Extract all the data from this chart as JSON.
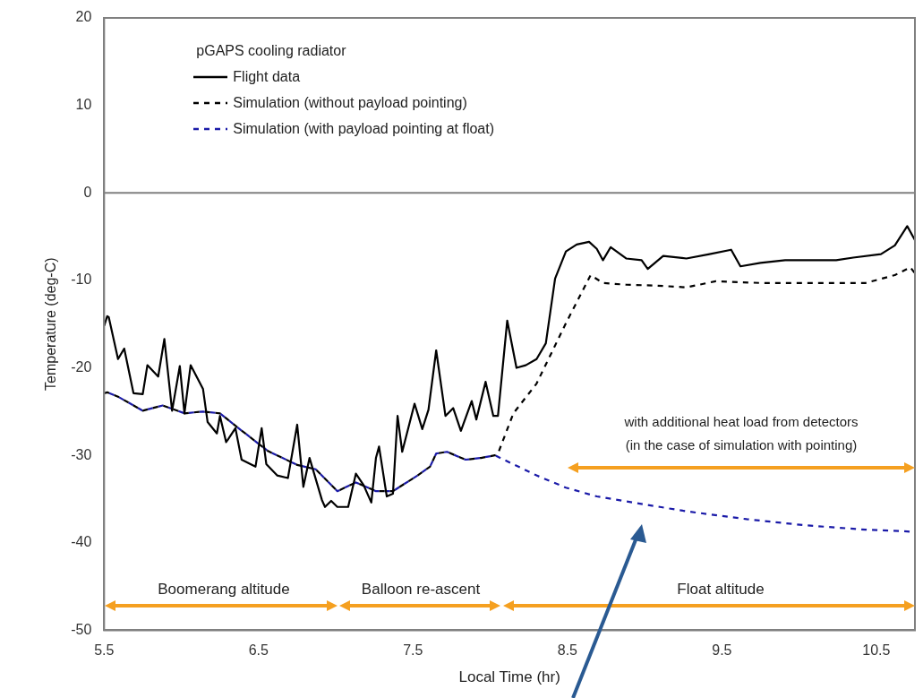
{
  "chart_data": {
    "type": "line",
    "xlabel": "Local Time (hr)",
    "ylabel": "Temperature (deg-C)",
    "legend_title": "pGAPS cooling radiator",
    "legend": "top left",
    "xlim": [
      5.5,
      10.75
    ],
    "xticks": [
      5.5,
      6.5,
      7.5,
      8.5,
      9.5,
      10.5
    ],
    "ylim": [
      -50,
      20
    ],
    "yticks": [
      -50,
      -40,
      -30,
      -20,
      -10,
      0,
      10,
      20
    ],
    "series": [
      {
        "name": "Flight data",
        "color": "#000000",
        "line_style": "solid",
        "x": [
          5.5,
          5.52,
          5.53,
          5.59,
          5.63,
          5.69,
          5.75,
          5.78,
          5.85,
          5.89,
          5.94,
          5.99,
          6.02,
          6.06,
          6.14,
          6.17,
          6.23,
          6.25,
          6.29,
          6.35,
          6.39,
          6.48,
          6.52,
          6.55,
          6.62,
          6.69,
          6.75,
          6.79,
          6.83,
          6.91,
          6.93,
          6.97,
          7.01,
          7.08,
          7.13,
          7.18,
          7.23,
          7.26,
          7.28,
          7.33,
          7.37,
          7.4,
          7.43,
          7.51,
          7.56,
          7.6,
          7.65,
          7.71,
          7.76,
          7.81,
          7.88,
          7.91,
          7.97,
          8.02,
          8.05,
          8.11,
          8.17,
          8.23,
          8.3,
          8.36,
          8.42,
          8.49,
          8.56,
          8.64,
          8.69,
          8.73,
          8.78,
          8.88,
          8.98,
          9.02,
          9.12,
          9.27,
          9.42,
          9.56,
          9.62,
          9.75,
          9.91,
          10.04,
          10.24,
          10.35,
          10.53,
          10.62,
          10.7,
          10.75
        ],
        "values": [
          -15.2,
          -14.1,
          -14.2,
          -19.0,
          -17.8,
          -22.9,
          -23.0,
          -19.7,
          -21.0,
          -16.7,
          -24.9,
          -19.8,
          -25.2,
          -19.7,
          -22.4,
          -26.2,
          -27.5,
          -25.5,
          -28.5,
          -26.9,
          -30.5,
          -31.3,
          -26.9,
          -31.0,
          -32.3,
          -32.6,
          -26.5,
          -33.6,
          -30.3,
          -35.1,
          -35.9,
          -35.2,
          -35.9,
          -35.9,
          -32.1,
          -33.4,
          -35.4,
          -30.3,
          -29.0,
          -34.7,
          -34.4,
          -25.5,
          -29.6,
          -24.1,
          -27.0,
          -24.8,
          -18.0,
          -25.5,
          -24.6,
          -27.2,
          -23.8,
          -25.9,
          -21.6,
          -25.5,
          -25.5,
          -14.6,
          -20.0,
          -19.7,
          -19.0,
          -17.2,
          -9.8,
          -6.7,
          -5.9,
          -5.6,
          -6.4,
          -7.7,
          -6.2,
          -7.5,
          -7.7,
          -8.7,
          -7.2,
          -7.5,
          -7.0,
          -6.5,
          -8.4,
          -8.0,
          -7.7,
          -7.7,
          -7.7,
          -7.4,
          -7.0,
          -6.0,
          -3.8,
          -5.4
        ]
      },
      {
        "name": "Simulation (without payload pointing)",
        "color": "#000000",
        "line_style": "dashed",
        "x": [
          5.5,
          5.52,
          5.59,
          5.75,
          5.88,
          6.02,
          6.14,
          6.25,
          6.37,
          6.56,
          6.75,
          6.87,
          7.01,
          7.13,
          7.26,
          7.37,
          7.53,
          7.61,
          7.65,
          7.72,
          7.84,
          7.94,
          8.03,
          8.05,
          8.15,
          8.3,
          8.49,
          8.65,
          8.73,
          8.88,
          9.08,
          9.27,
          9.46,
          9.75,
          10.04,
          10.43,
          10.62,
          10.72,
          10.75
        ],
        "values": [
          -22.9,
          -22.8,
          -23.3,
          -24.9,
          -24.3,
          -25.2,
          -25.0,
          -25.2,
          -26.9,
          -29.5,
          -31.1,
          -31.6,
          -34.1,
          -33.1,
          -34.1,
          -34.1,
          -32.3,
          -31.3,
          -29.8,
          -29.6,
          -30.5,
          -30.3,
          -30.0,
          -29.8,
          -25.2,
          -21.8,
          -14.9,
          -9.4,
          -10.3,
          -10.5,
          -10.6,
          -10.8,
          -10.1,
          -10.3,
          -10.3,
          -10.3,
          -9.4,
          -8.5,
          -9.2
        ]
      },
      {
        "name": "Simulation (with payload pointing at float)",
        "color": "#1a1aa8",
        "line_style": "dashed",
        "x": [
          5.5,
          5.52,
          5.59,
          5.75,
          5.88,
          6.02,
          6.14,
          6.25,
          6.37,
          6.56,
          6.75,
          6.87,
          7.01,
          7.13,
          7.26,
          7.37,
          7.53,
          7.61,
          7.65,
          7.72,
          7.84,
          7.94,
          8.03,
          8.3,
          8.49,
          8.69,
          8.96,
          9.27,
          9.66,
          10.04,
          10.43,
          10.7,
          10.75
        ],
        "values": [
          -22.9,
          -22.8,
          -23.3,
          -24.9,
          -24.3,
          -25.2,
          -25.0,
          -25.2,
          -26.9,
          -29.5,
          -31.1,
          -31.6,
          -34.1,
          -33.1,
          -34.1,
          -34.1,
          -32.3,
          -31.3,
          -29.8,
          -29.6,
          -30.5,
          -30.3,
          -30.0,
          -32.3,
          -33.7,
          -34.7,
          -35.5,
          -36.4,
          -37.3,
          -38.0,
          -38.5,
          -38.7,
          -38.8
        ]
      }
    ],
    "ref_lines": [
      {
        "axis": "y",
        "value": 0,
        "color": "#808080"
      }
    ],
    "annotations": [
      "Boomerang altitude",
      "Balloon re-ascent",
      "Float altitude",
      "with additional heat load from detectors\n(in the case of simulation with pointing)"
    ]
  }
}
